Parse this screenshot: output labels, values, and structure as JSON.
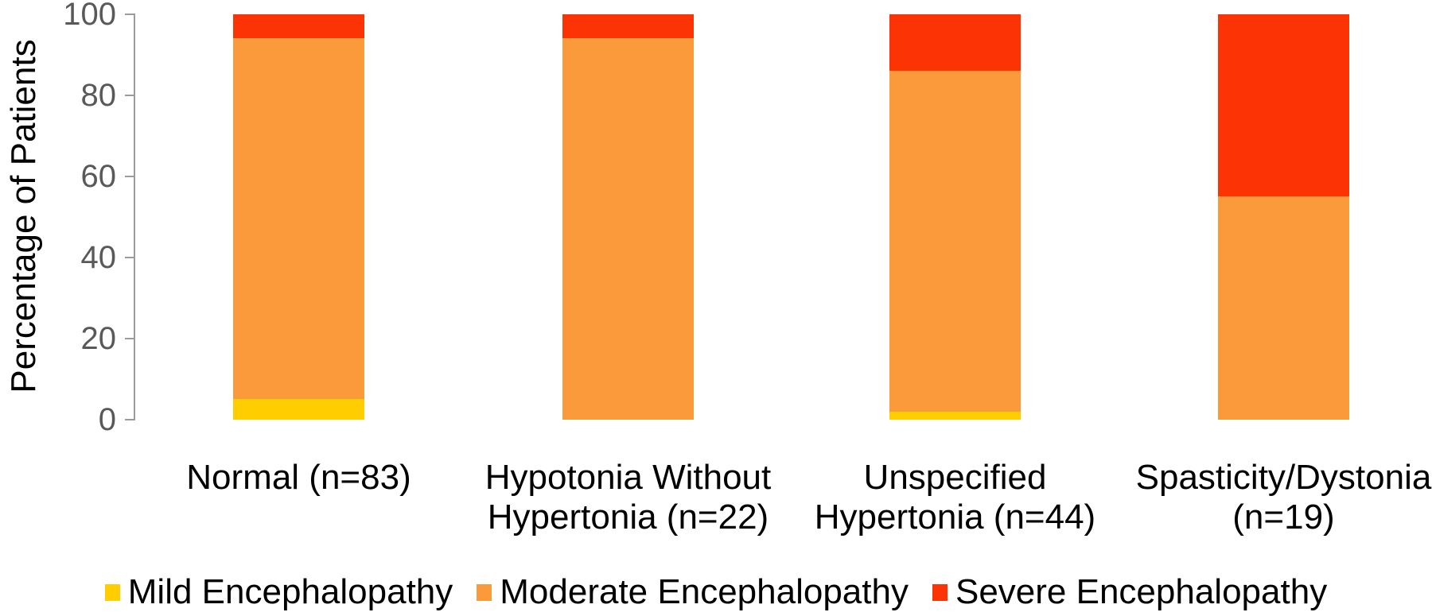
{
  "chart_data": {
    "type": "bar",
    "stacked": true,
    "title": "",
    "xlabel": "",
    "ylabel": "Percentage of Patients",
    "ylim": [
      0,
      100
    ],
    "yticks": [
      0,
      20,
      40,
      60,
      80,
      100
    ],
    "grid": false,
    "legend_position": "bottom",
    "categories": [
      "Normal (n=83)",
      "Hypotonia Without Hypertonia (n=22)",
      "Unspecified Hypertonia (n=44)",
      "Spasticity/Dystonia (n=19)"
    ],
    "category_label_lines": [
      [
        "Normal (n=83)"
      ],
      [
        "Hypotonia Without",
        "Hypertonia (n=22)"
      ],
      [
        "Unspecified",
        "Hypertonia (n=44)"
      ],
      [
        "Spasticity/Dystonia",
        "(n=19)"
      ]
    ],
    "series": [
      {
        "name": "Mild Encephalopathy",
        "color": "#FFCD00",
        "values": [
          5,
          0,
          2,
          0
        ]
      },
      {
        "name": "Moderate Encephalopathy",
        "color": "#FB9A3A",
        "values": [
          89,
          94,
          84,
          55
        ]
      },
      {
        "name": "Severe Encephalopathy",
        "color": "#FB3305",
        "values": [
          6,
          6,
          14,
          45
        ]
      }
    ]
  },
  "colors": {
    "axis": "#9B9B9B",
    "tick_label": "#595959",
    "text": "#000000",
    "background": "#FFFFFF"
  }
}
